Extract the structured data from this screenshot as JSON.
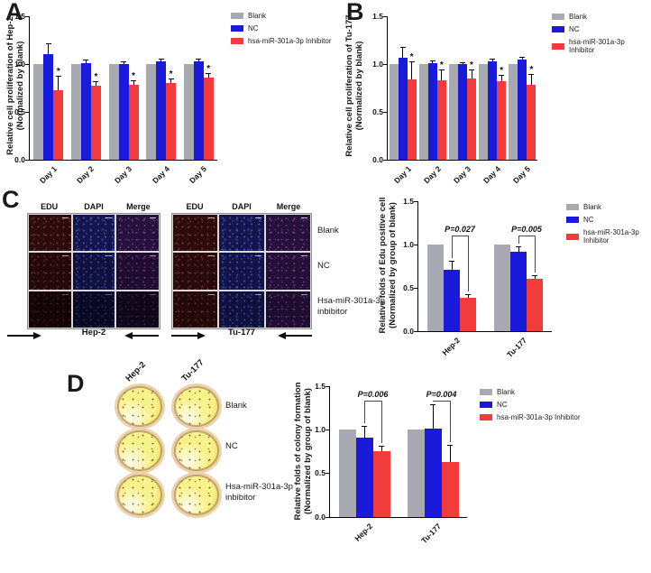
{
  "figure": {
    "panels": {
      "A": "A",
      "B": "B",
      "C": "C",
      "D": "D"
    }
  },
  "legend": {
    "items": [
      {
        "key": "blank",
        "label": "Blank",
        "color": "#A9A9B2"
      },
      {
        "key": "nc",
        "label": "NC",
        "color": "#1A1ADB"
      },
      {
        "key": "inhibitor",
        "label": "hsa-miR-301a-3p Inhibitor",
        "color": "#F23B3B"
      }
    ]
  },
  "edu_assay": {
    "column_headers": [
      "EDU",
      "DAPI",
      "Merge"
    ],
    "row_labels": [
      "Blank",
      "NC",
      "Hsa-miR-301a-3p inbibitor"
    ],
    "groups": [
      {
        "cell_line": "Hep-2"
      },
      {
        "cell_line": "Tu-177"
      }
    ]
  },
  "colony_assay": {
    "column_headers": [
      "Hep-2",
      "Tu-177"
    ],
    "row_labels": [
      "Blank",
      "NC",
      "Hsa-miR-301a-3p inbibitor"
    ]
  },
  "chart_data": [
    {
      "id": "A",
      "type": "bar",
      "ylabel_line1": "Relative  cell proliferation of Hep-2",
      "ylabel_line2": "(Normalized by blank)",
      "xlabel": "",
      "categories": [
        "Day 1",
        "Day 2",
        "Day 3",
        "Day 4",
        "Day 5"
      ],
      "ylim": [
        0,
        1.5
      ],
      "yticks": [
        "0.0",
        "0.5",
        "1.0",
        "1.5"
      ],
      "grid": false,
      "legend_position": "right",
      "series": [
        {
          "name": "Blank",
          "color": "#A9A9B2",
          "values": [
            1.0,
            1.0,
            1.0,
            1.0,
            1.0
          ],
          "errors": [
            0,
            0,
            0,
            0,
            0
          ]
        },
        {
          "name": "NC",
          "color": "#1A1ADB",
          "values": [
            1.1,
            1.01,
            1.0,
            1.03,
            1.03
          ],
          "errors": [
            0.11,
            0.03,
            0.02,
            0.02,
            0.02
          ]
        },
        {
          "name": "hsa-miR-301a-3p Inhibitor",
          "color": "#F23B3B",
          "values": [
            0.73,
            0.77,
            0.78,
            0.8,
            0.86
          ],
          "errors": [
            0.14,
            0.04,
            0.04,
            0.04,
            0.04
          ],
          "stars": [
            true,
            true,
            true,
            true,
            true
          ]
        }
      ]
    },
    {
      "id": "B",
      "type": "bar",
      "ylabel_line1": "Relative  cell proliferation of Tu-177",
      "ylabel_line2": "(Normalized by blank)",
      "xlabel": "",
      "categories": [
        "Day 1",
        "Day 2",
        "Day 3",
        "Day 4",
        "Day 5"
      ],
      "ylim": [
        0,
        1.5
      ],
      "yticks": [
        "0.0",
        "0.5",
        "1.0",
        "1.5"
      ],
      "grid": false,
      "legend_position": "right",
      "series": [
        {
          "name": "Blank",
          "color": "#A9A9B2",
          "values": [
            1.0,
            1.0,
            1.0,
            1.0,
            1.0
          ],
          "errors": [
            0,
            0,
            0,
            0,
            0
          ]
        },
        {
          "name": "NC",
          "color": "#1A1ADB",
          "values": [
            1.07,
            1.01,
            1.0,
            1.03,
            1.05
          ],
          "errors": [
            0.1,
            0.02,
            0.01,
            0.02,
            0.02
          ]
        },
        {
          "name": "hsa-miR-301a-3p Inhibitor",
          "color": "#F23B3B",
          "values": [
            0.84,
            0.83,
            0.85,
            0.82,
            0.78
          ],
          "errors": [
            0.18,
            0.1,
            0.08,
            0.06,
            0.11
          ],
          "stars": [
            true,
            true,
            true,
            true,
            true
          ]
        }
      ]
    },
    {
      "id": "C",
      "type": "bar",
      "ylabel_line1": "Relative  folds of Edu positive cell",
      "ylabel_line2": "(Normalized by group of blank)",
      "xlabel": "",
      "categories": [
        "Hep-2",
        "Tu-177"
      ],
      "ylim": [
        0,
        1.5
      ],
      "yticks": [
        "0.0",
        "0.5",
        "1.0",
        "1.5"
      ],
      "grid": false,
      "legend_position": "right",
      "bracket_y": 1.1,
      "series": [
        {
          "name": "Blank",
          "color": "#A9A9B2",
          "values": [
            1.0,
            1.0
          ],
          "errors": [
            0,
            0
          ]
        },
        {
          "name": "NC",
          "color": "#1A1ADB",
          "values": [
            0.71,
            0.92
          ],
          "errors": [
            0.09,
            0.05
          ]
        },
        {
          "name": "hsa-miR-301a-3p Inhibitor",
          "color": "#F23B3B",
          "values": [
            0.39,
            0.6
          ],
          "errors": [
            0.03,
            0.04
          ]
        }
      ],
      "significance": [
        {
          "category": "Hep-2",
          "label": "P=0.027"
        },
        {
          "category": "Tu-177",
          "label": "P=0.005"
        }
      ]
    },
    {
      "id": "D",
      "type": "bar",
      "ylabel_line1": "Relative  folds of colony formation",
      "ylabel_line2": "(Normalized by group of blank)",
      "xlabel": "",
      "categories": [
        "Hep-2",
        "Tu-177"
      ],
      "ylim": [
        0,
        1.5
      ],
      "yticks": [
        "0.0",
        "0.5",
        "1.0",
        "1.5"
      ],
      "grid": false,
      "legend_position": "right",
      "bracket_y": 1.33,
      "series": [
        {
          "name": "Blank",
          "color": "#A9A9B2",
          "values": [
            1.0,
            1.0
          ],
          "errors": [
            0,
            0
          ]
        },
        {
          "name": "NC",
          "color": "#1A1ADB",
          "values": [
            0.91,
            1.01
          ],
          "errors": [
            0.12,
            0.27
          ]
        },
        {
          "name": "hsa-miR-301a-3p Inhibitor",
          "color": "#F23B3B",
          "values": [
            0.76,
            0.63
          ],
          "errors": [
            0.05,
            0.19
          ]
        }
      ],
      "significance": [
        {
          "category": "Hep-2",
          "label": "P=0.006"
        },
        {
          "category": "Tu-177",
          "label": "P=0.004"
        }
      ]
    }
  ]
}
